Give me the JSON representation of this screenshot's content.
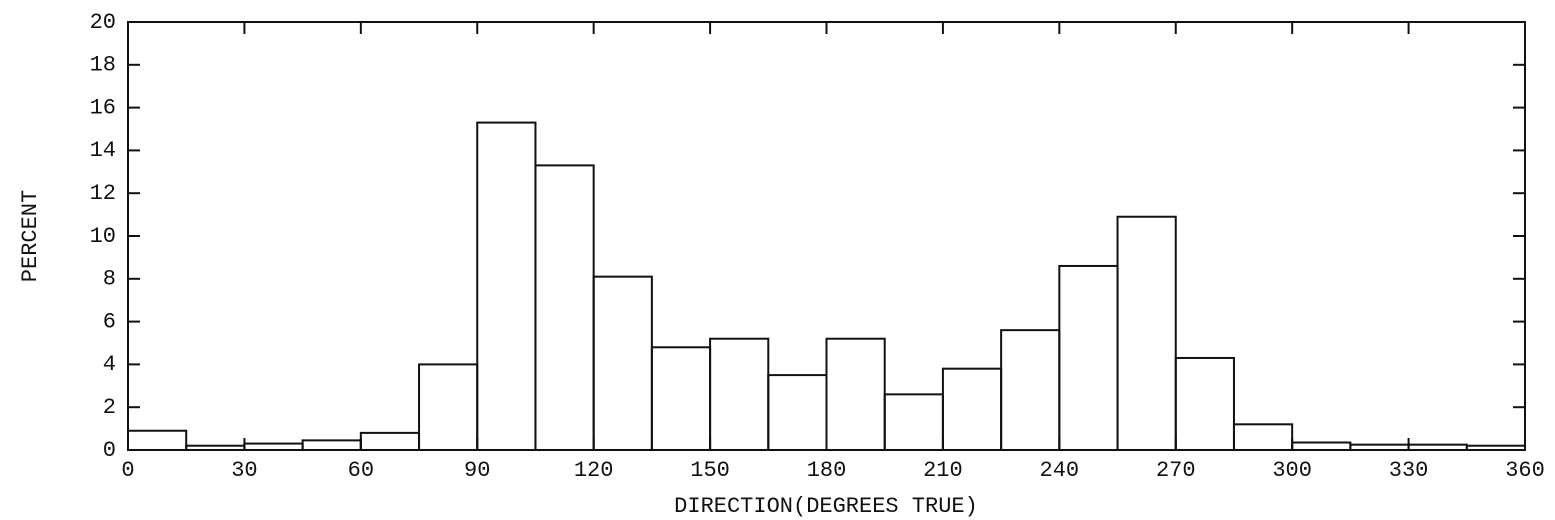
{
  "chart_data": {
    "type": "histogram",
    "xlabel": "DIRECTION(DEGREES TRUE)",
    "ylabel": "PERCENT",
    "bins": [
      0,
      15,
      30,
      45,
      60,
      75,
      90,
      105,
      120,
      135,
      150,
      165,
      180,
      195,
      210,
      225,
      240,
      255,
      270,
      285,
      300,
      315,
      330,
      345,
      360
    ],
    "values": [
      0.9,
      0.2,
      0.3,
      0.45,
      0.8,
      4.0,
      15.3,
      13.3,
      8.1,
      4.8,
      5.2,
      3.5,
      5.2,
      2.6,
      3.8,
      5.6,
      8.6,
      10.9,
      4.3,
      1.2,
      0.35,
      0.25,
      0.25,
      0.2
    ],
    "color": "#111111",
    "xlim": [
      0,
      360
    ],
    "xticks": [
      0,
      30,
      60,
      90,
      120,
      150,
      180,
      210,
      240,
      270,
      300,
      330,
      360
    ],
    "ylim": [
      0,
      20
    ],
    "yticks": [
      0,
      2,
      4,
      6,
      8,
      10,
      12,
      14,
      16,
      18,
      20
    ]
  }
}
